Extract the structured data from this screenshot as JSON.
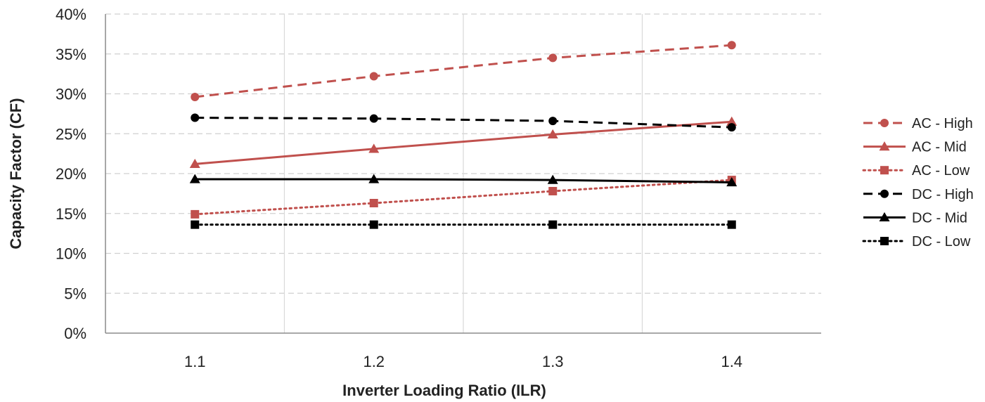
{
  "chart_data": {
    "type": "line",
    "title": "",
    "xlabel": "Inverter Loading Ratio (ILR)",
    "ylabel": "Capacity Factor (CF)",
    "categories": [
      "1.1",
      "1.2",
      "1.3",
      "1.4"
    ],
    "ylim": [
      0,
      40
    ],
    "yticks": [
      "0%",
      "5%",
      "10%",
      "15%",
      "20%",
      "25%",
      "30%",
      "35%",
      "40%"
    ],
    "grid": true,
    "legend_position": "right",
    "series": [
      {
        "name": "AC - High",
        "values": [
          29.6,
          32.2,
          34.5,
          36.1
        ],
        "color": "#c0504d",
        "dash": "dashed",
        "marker": "circle"
      },
      {
        "name": "AC - Mid",
        "values": [
          21.2,
          23.1,
          24.9,
          26.5
        ],
        "color": "#c0504d",
        "dash": "solid",
        "marker": "triangle"
      },
      {
        "name": "AC - Low",
        "values": [
          14.9,
          16.3,
          17.8,
          19.2
        ],
        "color": "#c0504d",
        "dash": "dotted",
        "marker": "square"
      },
      {
        "name": "DC - High",
        "values": [
          27.0,
          26.9,
          26.6,
          25.8
        ],
        "color": "#000000",
        "dash": "dashed",
        "marker": "circle"
      },
      {
        "name": "DC - Mid",
        "values": [
          19.3,
          19.3,
          19.2,
          18.9
        ],
        "color": "#000000",
        "dash": "solid",
        "marker": "triangle"
      },
      {
        "name": "DC - Low",
        "values": [
          13.6,
          13.6,
          13.6,
          13.6
        ],
        "color": "#000000",
        "dash": "dotted",
        "marker": "square"
      }
    ]
  }
}
